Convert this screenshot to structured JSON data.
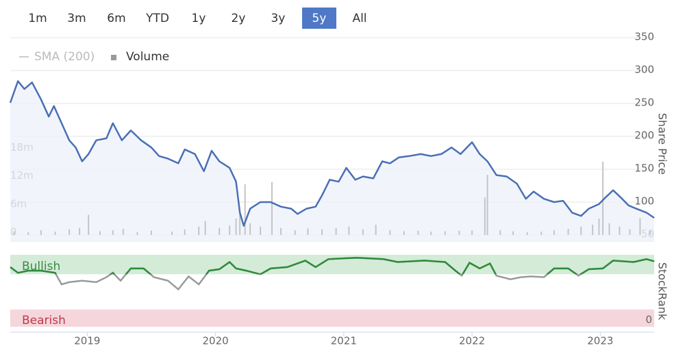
{
  "range_buttons": [
    "1m",
    "3m",
    "6m",
    "YTD",
    "1y",
    "2y",
    "3y",
    "5y",
    "All"
  ],
  "selected_range": 7,
  "chart_data": {
    "type": "line",
    "legend": [
      {
        "name": "SMA (200)",
        "hidden": true
      },
      {
        "name": "Volume",
        "hidden": false
      }
    ],
    "x": [
      2018.4,
      2018.46,
      2018.51,
      2018.57,
      2018.64,
      2018.7,
      2018.74,
      2018.8,
      2018.86,
      2018.91,
      2018.96,
      2019.01,
      2019.07,
      2019.15,
      2019.2,
      2019.27,
      2019.34,
      2019.42,
      2019.5,
      2019.56,
      2019.63,
      2019.71,
      2019.76,
      2019.84,
      2019.91,
      2019.97,
      2020.03,
      2020.11,
      2020.16,
      2020.19,
      2020.22,
      2020.27,
      2020.35,
      2020.43,
      2020.51,
      2020.59,
      2020.64,
      2020.71,
      2020.78,
      2020.83,
      2020.89,
      2020.96,
      2021.02,
      2021.09,
      2021.15,
      2021.23,
      2021.3,
      2021.36,
      2021.43,
      2021.51,
      2021.6,
      2021.68,
      2021.76,
      2021.84,
      2021.91,
      2022.0,
      2022.06,
      2022.12,
      2022.19,
      2022.27,
      2022.35,
      2022.42,
      2022.48,
      2022.56,
      2022.64,
      2022.71,
      2022.78,
      2022.85,
      2022.91,
      2022.99,
      2023.04,
      2023.1,
      2023.17,
      2023.22,
      2023.28,
      2023.36,
      2023.42
    ],
    "series": [
      {
        "color": "#4a6fb5",
        "values": [
          251,
          284,
          272,
          282,
          256,
          230,
          246,
          220,
          194,
          183,
          162,
          173,
          194,
          197,
          220,
          194,
          209,
          194,
          183,
          170,
          166,
          159,
          180,
          173,
          147,
          178,
          162,
          152,
          131,
          84,
          64,
          90,
          100,
          100,
          93,
          90,
          82,
          90,
          93,
          110,
          134,
          131,
          152,
          134,
          139,
          136,
          162,
          159,
          168,
          170,
          173,
          170,
          173,
          183,
          173,
          191,
          173,
          162,
          141,
          139,
          128,
          105,
          116,
          105,
          100,
          102,
          84,
          79,
          90,
          97,
          107,
          118,
          105,
          95,
          90,
          84,
          76
        ]
      }
    ],
    "ylim": [
      50,
      350
    ],
    "yticks": [
      50,
      100,
      150,
      200,
      250,
      300,
      350
    ],
    "y_label": "Share Price",
    "xlim": [
      2018.4,
      2023.42
    ],
    "xticks": [
      2019,
      2020,
      2021,
      2022,
      2023
    ],
    "grid": true,
    "volume": {
      "color": "#c4c4c4",
      "ylim": [
        0,
        42000000
      ],
      "yticks": [
        0,
        {
          "value": 6000000,
          "label": "6m"
        },
        {
          "value": 12000000,
          "label": "12m"
        },
        {
          "value": 18000000,
          "label": "18m"
        }
      ],
      "x": [
        2018.43,
        2018.54,
        2018.64,
        2018.75,
        2018.86,
        2018.94,
        2019.01,
        2019.1,
        2019.2,
        2019.28,
        2019.39,
        2019.5,
        2019.66,
        2019.76,
        2019.87,
        2019.92,
        2020.03,
        2020.11,
        2020.16,
        2020.19,
        2020.23,
        2020.27,
        2020.35,
        2020.44,
        2020.51,
        2020.62,
        2020.72,
        2020.83,
        2020.94,
        2021.04,
        2021.15,
        2021.25,
        2021.36,
        2021.47,
        2021.58,
        2021.68,
        2021.79,
        2021.9,
        2022.0,
        2022.1,
        2022.12,
        2022.22,
        2022.32,
        2022.43,
        2022.54,
        2022.64,
        2022.75,
        2022.85,
        2022.94,
        2022.99,
        2023.02,
        2023.07,
        2023.15,
        2023.23,
        2023.31,
        2023.39
      ],
      "values": [
        800000,
        600000,
        1000000,
        700000,
        1200000,
        1500000,
        4300000,
        800000,
        1000000,
        1300000,
        600000,
        900000,
        700000,
        1200000,
        1800000,
        3000000,
        1500000,
        2000000,
        3500000,
        4800000,
        10800000,
        2500000,
        1800000,
        11300000,
        1500000,
        1000000,
        1400000,
        1200000,
        1500000,
        1800000,
        1200000,
        2200000,
        1000000,
        800000,
        900000,
        700000,
        800000,
        900000,
        1000000,
        8000000,
        12800000,
        1000000,
        800000,
        600000,
        700000,
        1000000,
        1300000,
        1800000,
        2200000,
        3500000,
        15600000,
        2500000,
        1800000,
        1200000,
        3600000,
        1000000
      ]
    },
    "stockrank": {
      "y_label": "StockRank",
      "bullish_label": "Bullish",
      "bearish_label": "Bearish",
      "ylim": [
        0,
        100
      ],
      "yticks": [
        0
      ],
      "bullish_range": [
        73,
        100
      ],
      "bearish_range": [
        0,
        24
      ],
      "bullish_color": "#2e8b3a",
      "neutral_color": "#9a9a9a",
      "x": [
        2018.4,
        2018.46,
        2018.54,
        2018.64,
        2018.75,
        2018.8,
        2018.86,
        2018.96,
        2019.07,
        2019.15,
        2019.2,
        2019.26,
        2019.34,
        2019.44,
        2019.52,
        2019.63,
        2019.71,
        2019.79,
        2019.87,
        2019.95,
        2020.03,
        2020.11,
        2020.16,
        2020.24,
        2020.35,
        2020.43,
        2020.56,
        2020.7,
        2020.78,
        2020.88,
        2021.1,
        2021.31,
        2021.42,
        2021.63,
        2021.79,
        2021.87,
        2021.92,
        2021.98,
        2022.06,
        2022.14,
        2022.19,
        2022.3,
        2022.38,
        2022.46,
        2022.56,
        2022.64,
        2022.75,
        2022.83,
        2022.91,
        2023.02,
        2023.1,
        2023.26,
        2023.36,
        2023.42
      ],
      "values": [
        83,
        75,
        78,
        78,
        75,
        59,
        62,
        64,
        62,
        69,
        75,
        64,
        81,
        81,
        69,
        64,
        52,
        70,
        59,
        78,
        80,
        90,
        81,
        78,
        73,
        81,
        83,
        92,
        83,
        94,
        96,
        94,
        90,
        92,
        90,
        78,
        71,
        89,
        81,
        88,
        71,
        66,
        69,
        70,
        69,
        81,
        81,
        71,
        80,
        81,
        92,
        90,
        94,
        91
      ]
    }
  }
}
